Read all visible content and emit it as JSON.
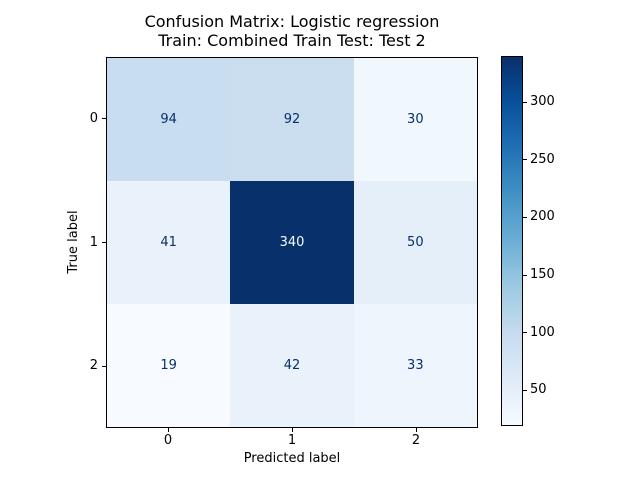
{
  "chart_data": {
    "type": "heatmap",
    "title_line1": "Confusion Matrix: Logistic regression",
    "title_line2": "Train: Combined Train Test: Test 2",
    "xlabel": "Predicted label",
    "ylabel": "True label",
    "x_tick_labels": [
      "0",
      "1",
      "2"
    ],
    "y_tick_labels": [
      "0",
      "1",
      "2"
    ],
    "matrix": [
      [
        94,
        92,
        30
      ],
      [
        41,
        340,
        50
      ],
      [
        19,
        42,
        33
      ]
    ],
    "vmin": 19,
    "vmax": 340,
    "colormap": "Blues",
    "colorbar_ticks": [
      50,
      100,
      150,
      200,
      250,
      300
    ],
    "cell_colors": [
      [
        "#c9ddf0",
        "#cadef0",
        "#f0f7fd"
      ],
      [
        "#e9f2fb",
        "#08306b",
        "#e4eff9"
      ],
      [
        "#f7fbff",
        "#e9f2fa",
        "#eef5fc"
      ]
    ],
    "cell_text_colors": [
      [
        "#08306b",
        "#08306b",
        "#08306b"
      ],
      [
        "#08306b",
        "#f7fbff",
        "#08306b"
      ],
      [
        "#08306b",
        "#08306b",
        "#08306b"
      ]
    ],
    "colorbar_gradient": [
      "#f7fbff",
      "#deebf7",
      "#c6dbef",
      "#9ecae1",
      "#6baed6",
      "#4292c6",
      "#2171b5",
      "#08519c",
      "#08306b"
    ],
    "spine_color": "#000000",
    "background_color": "#ffffff"
  }
}
